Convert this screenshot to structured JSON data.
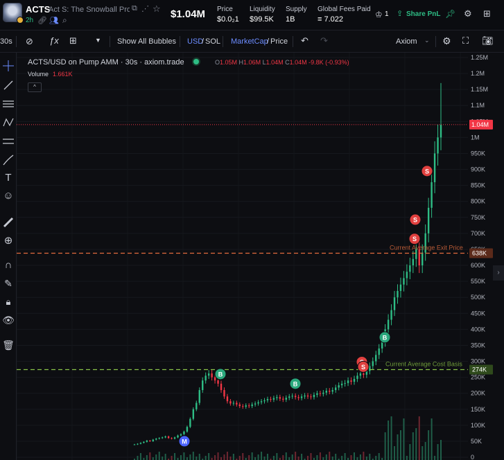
{
  "header": {
    "ticker": "ACTS",
    "token_name": "Act S: The Snowball Pro...",
    "age": "2h",
    "price": "$1.04M",
    "stats": [
      {
        "label": "Price",
        "value": "$0.0₂1"
      },
      {
        "label": "Liquidity",
        "value": "$99.5K"
      },
      {
        "label": "Supply",
        "value": "1B"
      },
      {
        "label": "Global Fees Paid",
        "value": "≡ 7.022"
      }
    ],
    "holders_count": "1",
    "share_label": "Share PnL"
  },
  "toolbar": {
    "interval": "30s",
    "show_bubbles": "Show All Bubbles",
    "usd": "USD",
    "sol": "SOL",
    "mcap": "MarketCap",
    "price": "Price",
    "source": "Axiom"
  },
  "legend": {
    "title": "ACTS/USD on Pump AMM · 30s · axiom.trade",
    "o_label": "O",
    "o": "1.05M",
    "h_label": "H",
    "h": "1.06M",
    "l_label": "L",
    "l": "1.04M",
    "c_label": "C",
    "c": "1.04M",
    "change": "-9.8K (-0.93%)",
    "volume_label": "Volume",
    "volume": "1.661K"
  },
  "chart_data": {
    "type": "candlestick",
    "y_ticks": [
      "1.25M",
      "1.2M",
      "1.15M",
      "1.1M",
      "1.05M",
      "1M",
      "950K",
      "900K",
      "850K",
      "800K",
      "750K",
      "700K",
      "650K",
      "600K",
      "550K",
      "500K",
      "450K",
      "400K",
      "350K",
      "300K",
      "250K",
      "200K",
      "150K",
      "100K",
      "50K",
      "0"
    ],
    "ylim": [
      0,
      1250000
    ],
    "current_price": {
      "value": 1040000,
      "label": "1.04M"
    },
    "avg_exit": {
      "value": 638000,
      "label": "638K",
      "text": "Current Average Exit Price"
    },
    "avg_cost": {
      "value": 274000,
      "label": "274K",
      "text": "Current Average Cost Basis"
    },
    "close_path": [
      40,
      42,
      45,
      48,
      52,
      50,
      55,
      58,
      60,
      62,
      65,
      60,
      58,
      62,
      68,
      72,
      80,
      95,
      120,
      150,
      170,
      210,
      240,
      255,
      262,
      250,
      240,
      230,
      210,
      190,
      175,
      168,
      170,
      165,
      160,
      158,
      162,
      160,
      165,
      168,
      172,
      175,
      178,
      182,
      180,
      185,
      188,
      183,
      180,
      186,
      190,
      192,
      188,
      185,
      190,
      193,
      190,
      188,
      195,
      200,
      198,
      202,
      208,
      205,
      210,
      218,
      225,
      230,
      232,
      240,
      236,
      245,
      255,
      262,
      258,
      270,
      285,
      300,
      320,
      340,
      360,
      400,
      430,
      460,
      500,
      520,
      540,
      560,
      580,
      600,
      620,
      650,
      600,
      640,
      700,
      780,
      860,
      950,
      1000,
      1040
    ],
    "markers": [
      {
        "type": "M",
        "value": 50000
      },
      {
        "type": "B",
        "value": 260000
      },
      {
        "type": "B",
        "value": 230000
      },
      {
        "type": "S",
        "value": 298000
      },
      {
        "type": "S",
        "value": 283000
      },
      {
        "type": "B",
        "value": 375000
      },
      {
        "type": "S",
        "value": 683000
      },
      {
        "type": "S",
        "value": 743000
      },
      {
        "type": "S",
        "value": 895000
      }
    ]
  },
  "colors": {
    "up": "#2ebd85",
    "down": "#f23645",
    "exit": "#e46b3e",
    "cost": "#8bc34a"
  }
}
